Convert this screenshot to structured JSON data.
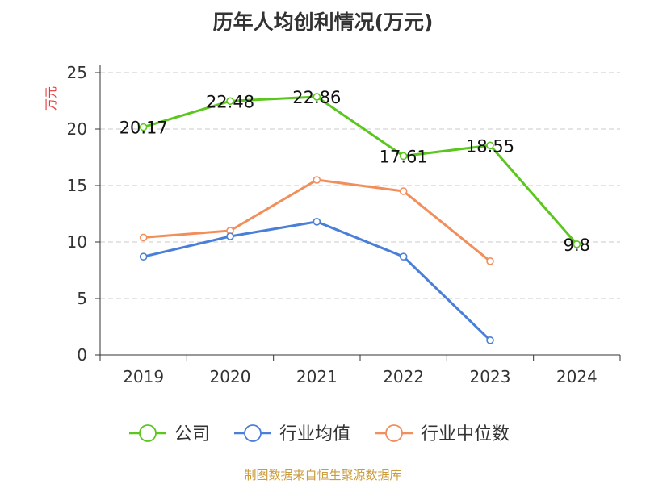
{
  "chart_data": {
    "type": "line",
    "title": "历年人均创利情况(万元)",
    "ylabel": "万元",
    "xlabel": "",
    "categories": [
      "2019",
      "2020",
      "2021",
      "2022",
      "2023",
      "2024"
    ],
    "ylim": [
      0,
      25
    ],
    "yticks": [
      0,
      5,
      10,
      15,
      20,
      25
    ],
    "grid": true,
    "legend_position": "bottom",
    "series": [
      {
        "name": "公司",
        "values": [
          20.17,
          22.48,
          22.86,
          17.61,
          18.55,
          9.8
        ],
        "labels": [
          "20.17",
          "22.48",
          "22.86",
          "17.61",
          "18.55",
          "9.8"
        ],
        "color": "#5ac61e"
      },
      {
        "name": "行业均值",
        "values": [
          8.7,
          10.5,
          11.8,
          8.7,
          1.3,
          null
        ],
        "color": "#4a7fd8"
      },
      {
        "name": "行业中位数",
        "values": [
          10.4,
          11.0,
          15.5,
          14.5,
          8.3,
          null
        ],
        "color": "#f28e5a"
      }
    ],
    "source": "制图数据来自恒生聚源数据库"
  },
  "colors": {
    "title": "#333333",
    "ylabel": "#e83a3a",
    "source": "#c99b3a",
    "grid": "#c8c8c8",
    "axis": "#333333"
  }
}
